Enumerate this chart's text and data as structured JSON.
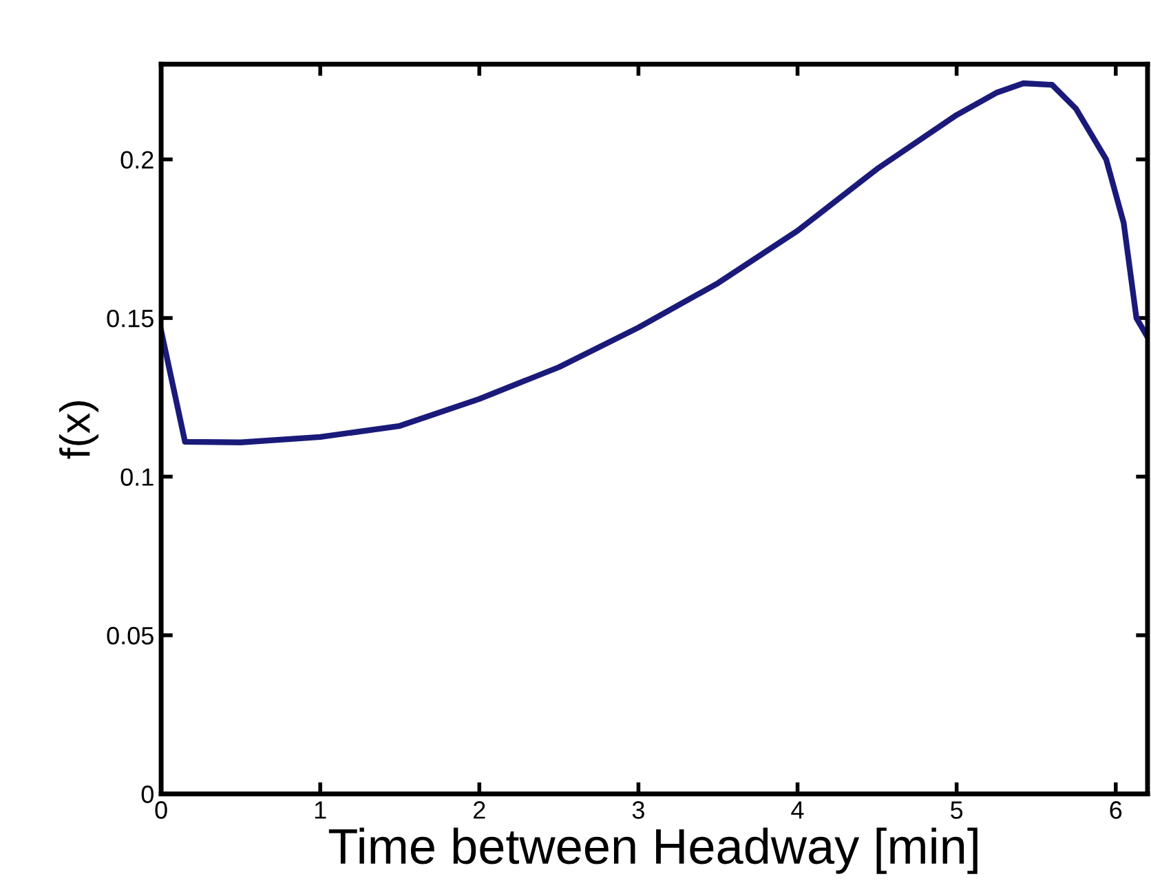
{
  "chart_data": {
    "type": "line",
    "xlabel": "Time between Headway [min]",
    "ylabel": "f(x)",
    "x": [
      0,
      0.15,
      0.5,
      1,
      1.5,
      2,
      2.5,
      3,
      3.5,
      4,
      4.5,
      5,
      5.25,
      5.42,
      5.6,
      5.75,
      5.94,
      6.05,
      6.13,
      6.2
    ],
    "series": [
      {
        "color": "#1a1a7a",
        "values": [
          0.146,
          0.111,
          0.1108,
          0.1125,
          0.116,
          0.1245,
          0.1345,
          0.147,
          0.161,
          0.1775,
          0.197,
          0.214,
          0.221,
          0.224,
          0.2235,
          0.216,
          0.2,
          0.18,
          0.15,
          0.144
        ]
      }
    ],
    "xlim": [
      0,
      6.2
    ],
    "ylim": [
      0,
      0.23
    ],
    "xticks": [
      0,
      1,
      2,
      3,
      4,
      5,
      6
    ],
    "yticks": [
      0,
      0.05,
      0.1,
      0.15,
      0.2
    ],
    "grid": false,
    "legend": false,
    "marker": "none",
    "line_style": "solid"
  }
}
